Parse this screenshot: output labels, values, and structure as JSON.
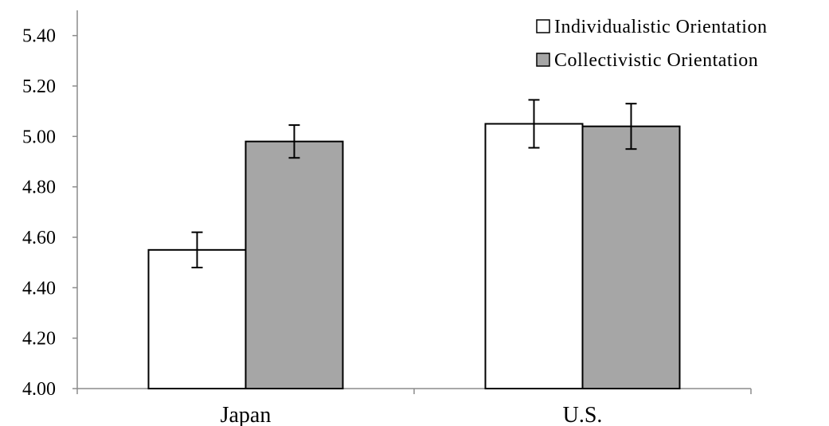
{
  "chart_data": {
    "type": "bar",
    "categories": [
      "Japan",
      "U.S."
    ],
    "series": [
      {
        "name": "Individualistic Orientation",
        "values": [
          4.55,
          5.05
        ],
        "error": [
          0.07,
          0.095
        ],
        "color": "#ffffff"
      },
      {
        "name": "Collectivistic Orientation",
        "values": [
          4.98,
          5.04
        ],
        "error": [
          0.065,
          0.09
        ],
        "color": "#a6a6a6"
      }
    ],
    "ylim": [
      4.0,
      5.5
    ],
    "yticks": [
      "4.00",
      "4.20",
      "4.40",
      "4.60",
      "4.80",
      "5.00",
      "5.20",
      "5.40"
    ],
    "ytick_values": [
      4.0,
      4.2,
      4.4,
      4.6,
      4.8,
      5.0,
      5.2,
      5.4
    ],
    "title": "",
    "xlabel": "",
    "ylabel": "",
    "legend_position": "top-right",
    "grid": false
  }
}
